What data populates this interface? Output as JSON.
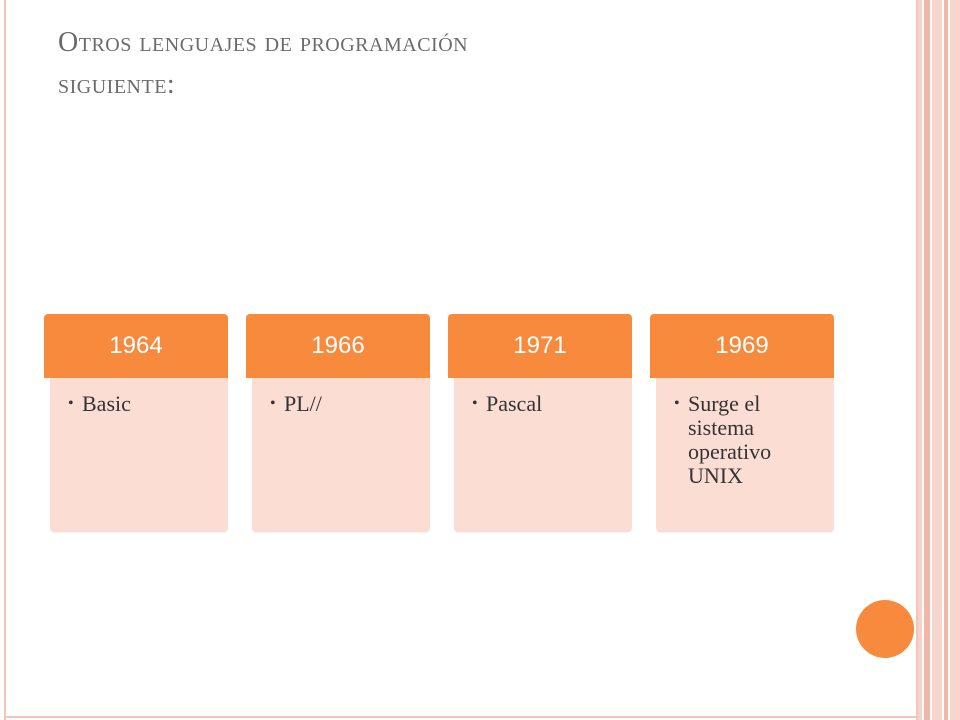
{
  "slide": {
    "title_line1": "Otros lenguajes de programación",
    "title_line2": "siguiente:"
  },
  "timeline": [
    {
      "year": "1964",
      "item": "Basic"
    },
    {
      "year": "1966",
      "item": "PL//"
    },
    {
      "year": "1971",
      "item": "Pascal"
    },
    {
      "year": "1969",
      "item": "Surge el sistema operativo UNIX"
    }
  ],
  "colors": {
    "accent": "#f78a3c",
    "card_body": "#fcddd4",
    "frame": "#f3c6bc",
    "title_text": "#6b6b6b"
  },
  "icons": {
    "bullet": "bullet-dot-icon",
    "decoration": "orange-circle-icon"
  }
}
